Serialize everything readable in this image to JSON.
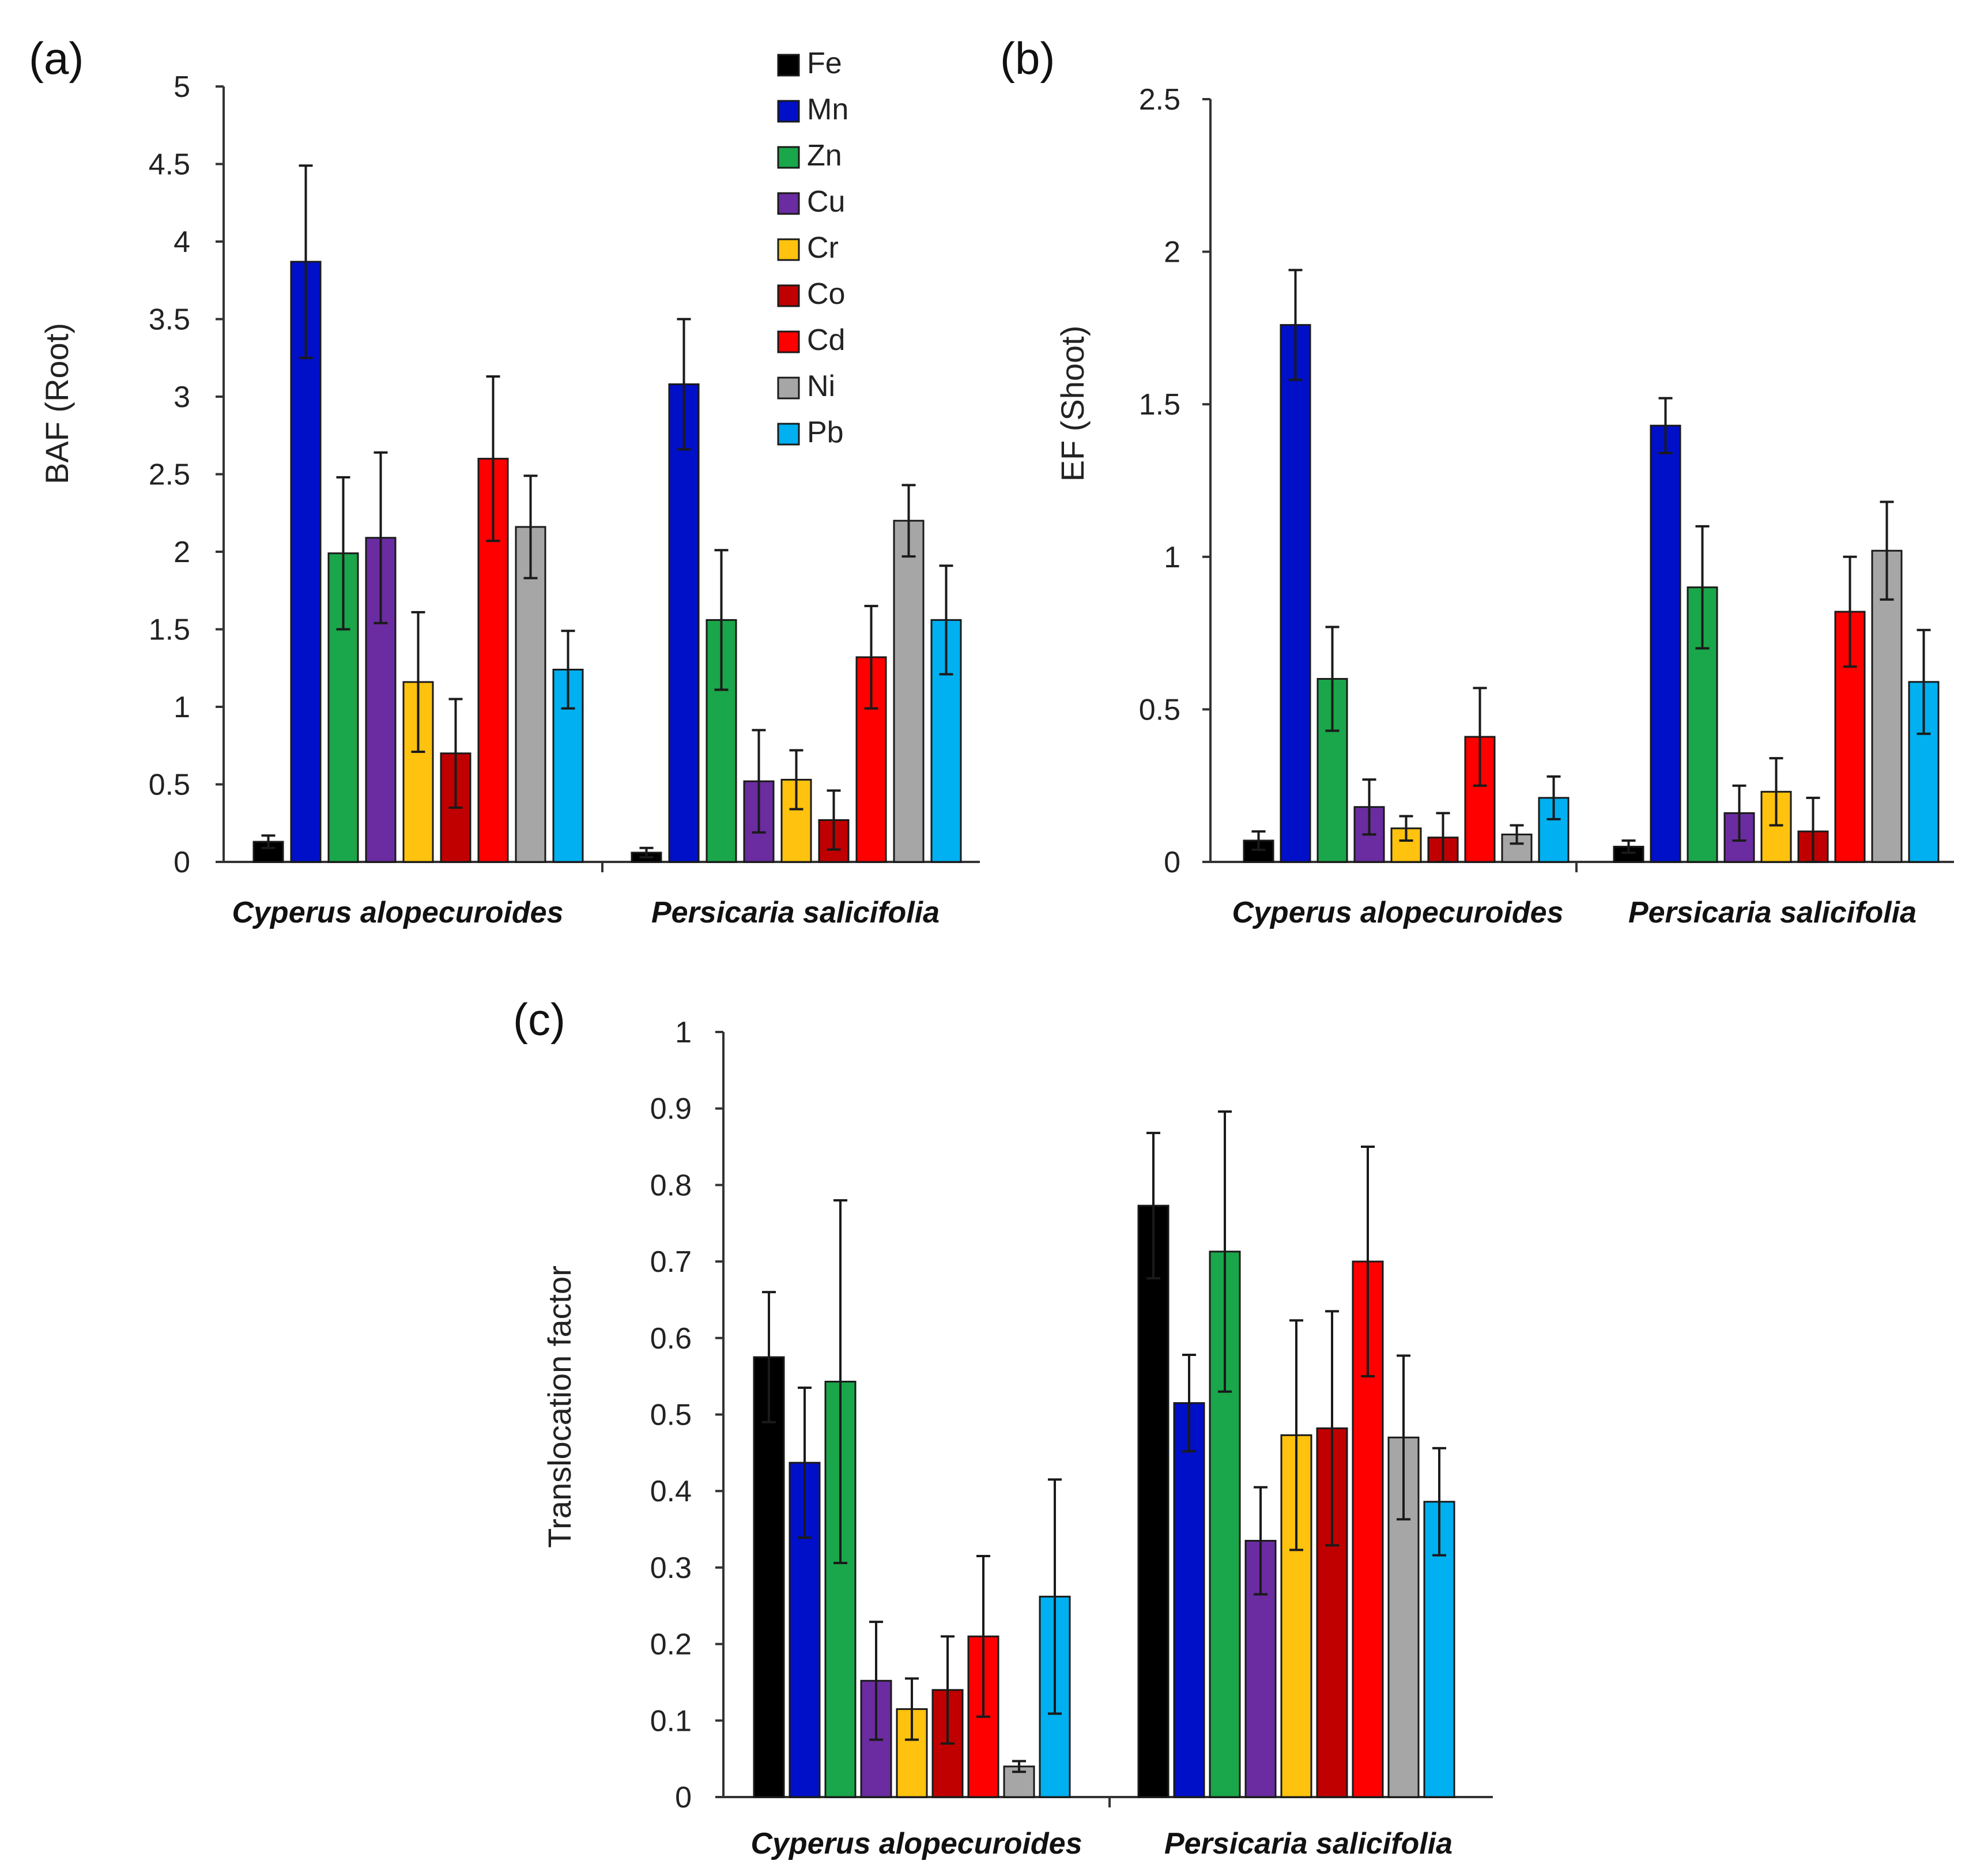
{
  "figure": {
    "elements": [
      "Fe",
      "Mn",
      "Zn",
      "Cu",
      "Cr",
      "Co",
      "Cd",
      "Ni",
      "Pb"
    ],
    "element_colors": [
      "#000000",
      "#0010c8",
      "#1aa64a",
      "#6a2ca0",
      "#ffc20e",
      "#c00000",
      "#ff0000",
      "#a6a6a6",
      "#00b0f0"
    ]
  },
  "chart_data": [
    {
      "type": "bar",
      "panel_label": "(a)",
      "categories": [
        "Cyperus alopecuroides",
        "Persicaria salicifolia"
      ],
      "ylabel": "BAF (Root)",
      "xlabel": "",
      "ylim": [
        0,
        5
      ],
      "yticks": [
        "0",
        "0.5",
        "1",
        "1.5",
        "2",
        "2.5",
        "3",
        "3.5",
        "4",
        "4.5",
        "5"
      ],
      "legend": {
        "position": "top-right",
        "entries": [
          "Fe",
          "Mn",
          "Zn",
          "Cu",
          "Cr",
          "Co",
          "Cd",
          "Ni",
          "Pb"
        ]
      },
      "series": [
        {
          "name": "Fe",
          "values": [
            0.13,
            0.06
          ],
          "errors": [
            0.04,
            0.03
          ]
        },
        {
          "name": "Mn",
          "values": [
            3.87,
            3.08
          ],
          "errors": [
            0.62,
            0.42
          ]
        },
        {
          "name": "Zn",
          "values": [
            1.99,
            1.56
          ],
          "errors": [
            0.49,
            0.45
          ]
        },
        {
          "name": "Cu",
          "values": [
            2.09,
            0.52
          ],
          "errors": [
            0.55,
            0.33
          ]
        },
        {
          "name": "Cr",
          "values": [
            1.16,
            0.53
          ],
          "errors": [
            0.45,
            0.19
          ]
        },
        {
          "name": "Co",
          "values": [
            0.7,
            0.27
          ],
          "errors": [
            0.35,
            0.19
          ]
        },
        {
          "name": "Cd",
          "values": [
            2.6,
            1.32
          ],
          "errors": [
            0.53,
            0.33
          ]
        },
        {
          "name": "Ni",
          "values": [
            2.16,
            2.2
          ],
          "errors": [
            0.33,
            0.23
          ]
        },
        {
          "name": "Pb",
          "values": [
            1.24,
            1.56
          ],
          "errors": [
            0.25,
            0.35
          ]
        }
      ]
    },
    {
      "type": "bar",
      "panel_label": "(b)",
      "categories": [
        "Cyperus alopecuroides",
        "Persicaria salicifolia"
      ],
      "ylabel": "EF (Shoot)",
      "xlabel": "",
      "ylim": [
        0,
        2.5
      ],
      "yticks": [
        "0",
        "0.5",
        "1",
        "1.5",
        "2",
        "2.5"
      ],
      "series": [
        {
          "name": "Fe",
          "values": [
            0.07,
            0.05
          ],
          "errors": [
            0.03,
            0.02
          ]
        },
        {
          "name": "Mn",
          "values": [
            1.76,
            1.43
          ],
          "errors": [
            0.18,
            0.09
          ]
        },
        {
          "name": "Zn",
          "values": [
            0.6,
            0.9
          ],
          "errors": [
            0.17,
            0.2
          ]
        },
        {
          "name": "Cu",
          "values": [
            0.18,
            0.16
          ],
          "errors": [
            0.09,
            0.09
          ]
        },
        {
          "name": "Cr",
          "values": [
            0.11,
            0.23
          ],
          "errors": [
            0.04,
            0.11
          ]
        },
        {
          "name": "Co",
          "values": [
            0.08,
            0.1
          ],
          "errors": [
            0.08,
            0.11
          ]
        },
        {
          "name": "Cd",
          "values": [
            0.41,
            0.82
          ],
          "errors": [
            0.16,
            0.18
          ]
        },
        {
          "name": "Ni",
          "values": [
            0.09,
            1.02
          ],
          "errors": [
            0.03,
            0.16
          ]
        },
        {
          "name": "Pb",
          "values": [
            0.21,
            0.59
          ],
          "errors": [
            0.07,
            0.17
          ]
        }
      ]
    },
    {
      "type": "bar",
      "panel_label": "(c)",
      "categories": [
        "Cyperus alopecuroides",
        "Persicaria salicifolia"
      ],
      "ylabel": "Translocation factor",
      "xlabel": "",
      "ylim": [
        0,
        1
      ],
      "yticks": [
        "0",
        "0.1",
        "0.2",
        "0.3",
        "0.4",
        "0.5",
        "0.6",
        "0.7",
        "0.8",
        "0.9",
        "1"
      ],
      "series": [
        {
          "name": "Fe",
          "values": [
            0.575,
            0.773
          ],
          "errors": [
            0.085,
            0.095
          ]
        },
        {
          "name": "Mn",
          "values": [
            0.437,
            0.515
          ],
          "errors": [
            0.098,
            0.063
          ]
        },
        {
          "name": "Zn",
          "values": [
            0.543,
            0.713
          ],
          "errors": [
            0.237,
            0.183
          ]
        },
        {
          "name": "Cu",
          "values": [
            0.152,
            0.335
          ],
          "errors": [
            0.077,
            0.07
          ]
        },
        {
          "name": "Cr",
          "values": [
            0.115,
            0.473
          ],
          "errors": [
            0.04,
            0.15
          ]
        },
        {
          "name": "Co",
          "values": [
            0.14,
            0.482
          ],
          "errors": [
            0.07,
            0.153
          ]
        },
        {
          "name": "Cd",
          "values": [
            0.21,
            0.7
          ],
          "errors": [
            0.105,
            0.15
          ]
        },
        {
          "name": "Ni",
          "values": [
            0.04,
            0.47
          ],
          "errors": [
            0.007,
            0.107
          ]
        },
        {
          "name": "Pb",
          "values": [
            0.262,
            0.386
          ],
          "errors": [
            0.153,
            0.07
          ]
        }
      ]
    }
  ]
}
